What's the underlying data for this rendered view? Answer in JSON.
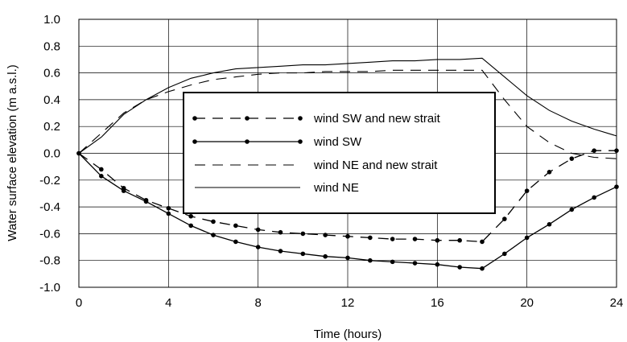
{
  "chart_data": {
    "type": "line",
    "xlabel": "Time (hours)",
    "ylabel": "Water surface elevation (m a.s.l.)",
    "xlim": [
      0,
      24
    ],
    "ylim": [
      -1.0,
      1.0
    ],
    "xticks": [
      0,
      4,
      8,
      12,
      16,
      20,
      24
    ],
    "yticks": [
      1.0,
      0.8,
      0.6,
      0.4,
      0.2,
      0.0,
      -0.2,
      -0.4,
      -0.6,
      -0.8,
      -1.0
    ],
    "ytick_labels": [
      "1.0",
      "0.8",
      "0.6",
      "0.4",
      "0.2",
      "0.0",
      "-0.2",
      "-0.4",
      "-0.6",
      "-0.8",
      "-1.0"
    ],
    "grid": true,
    "legend_position": "center",
    "series": [
      {
        "name": "wind SW and new strait",
        "style": "dashed-dots",
        "x": [
          0,
          1,
          2,
          3,
          4,
          5,
          6,
          7,
          8,
          9,
          10,
          11,
          12,
          13,
          14,
          15,
          16,
          17,
          18,
          19,
          20,
          21,
          22,
          23,
          24
        ],
        "y": [
          0,
          -0.12,
          -0.26,
          -0.35,
          -0.41,
          -0.47,
          -0.51,
          -0.54,
          -0.57,
          -0.59,
          -0.6,
          -0.61,
          -0.62,
          -0.63,
          -0.64,
          -0.64,
          -0.65,
          -0.65,
          -0.66,
          -0.49,
          -0.28,
          -0.14,
          -0.04,
          0.02,
          0.02
        ]
      },
      {
        "name": "wind  SW",
        "style": "solid-dots",
        "x": [
          0,
          1,
          2,
          3,
          4,
          5,
          6,
          7,
          8,
          9,
          10,
          11,
          12,
          13,
          14,
          15,
          16,
          17,
          18,
          19,
          20,
          21,
          22,
          23,
          24
        ],
        "y": [
          0,
          -0.17,
          -0.28,
          -0.36,
          -0.45,
          -0.54,
          -0.61,
          -0.66,
          -0.7,
          -0.73,
          -0.75,
          -0.77,
          -0.78,
          -0.8,
          -0.81,
          -0.82,
          -0.83,
          -0.85,
          -0.86,
          -0.75,
          -0.63,
          -0.53,
          -0.42,
          -0.33,
          -0.25
        ]
      },
      {
        "name": "wind NE and new strait",
        "style": "dashed",
        "x": [
          0,
          1,
          2,
          3,
          4,
          5,
          6,
          7,
          8,
          9,
          10,
          11,
          12,
          13,
          14,
          15,
          16,
          17,
          18,
          19,
          20,
          21,
          22,
          23,
          24
        ],
        "y": [
          0,
          0.15,
          0.3,
          0.4,
          0.46,
          0.51,
          0.55,
          0.57,
          0.59,
          0.6,
          0.6,
          0.61,
          0.61,
          0.61,
          0.62,
          0.62,
          0.62,
          0.62,
          0.62,
          0.4,
          0.2,
          0.08,
          0.0,
          -0.03,
          -0.04
        ]
      },
      {
        "name": "wind NE",
        "style": "solid",
        "x": [
          0,
          1,
          2,
          3,
          4,
          5,
          6,
          7,
          8,
          9,
          10,
          11,
          12,
          13,
          14,
          15,
          16,
          17,
          18,
          19,
          20,
          21,
          22,
          23,
          24
        ],
        "y": [
          0,
          0.12,
          0.29,
          0.4,
          0.49,
          0.56,
          0.6,
          0.63,
          0.64,
          0.65,
          0.66,
          0.66,
          0.67,
          0.68,
          0.69,
          0.69,
          0.7,
          0.7,
          0.71,
          0.57,
          0.43,
          0.32,
          0.24,
          0.18,
          0.13
        ]
      }
    ]
  }
}
